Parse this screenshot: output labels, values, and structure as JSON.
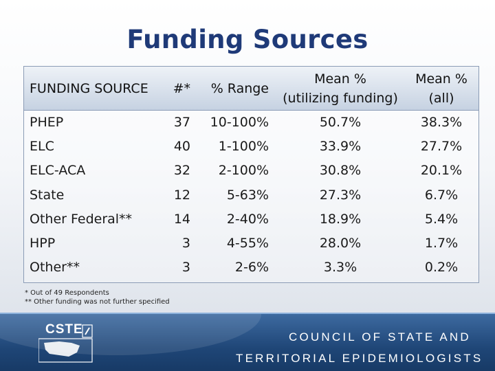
{
  "title": "Funding Sources",
  "table": {
    "headers": [
      "FUNDING SOURCE",
      "#*",
      "% Range",
      "Mean %\n(utilizing funding)",
      "Mean %\n(all)"
    ],
    "header_lines": {
      "col3_line1": "Mean %",
      "col3_line2": "(utilizing funding)",
      "col4_line1": "Mean %",
      "col4_line2": "(all)"
    },
    "rows": [
      [
        "PHEP",
        "37",
        "10-100%",
        "50.7%",
        "38.3%"
      ],
      [
        "ELC",
        "40",
        "1-100%",
        "33.9%",
        "27.7%"
      ],
      [
        "ELC-ACA",
        "32",
        "2-100%",
        "30.8%",
        "20.1%"
      ],
      [
        "State",
        "12",
        "5-63%",
        "27.3%",
        "6.7%"
      ],
      [
        "Other Federal**",
        "14",
        "2-40%",
        "18.9%",
        "5.4%"
      ],
      [
        "HPP",
        "3",
        "4-55%",
        "28.0%",
        "1.7%"
      ],
      [
        "Other**",
        "3",
        "2-6%",
        "3.3%",
        "0.2%"
      ]
    ]
  },
  "footnotes": [
    "* Out of 49 Respondents",
    "** Other funding was not further specified"
  ],
  "footer": {
    "logo_text": "CSTE",
    "org_line1": "COUNCIL OF STATE AND",
    "org_line2": "TERRITORIAL EPIDEMIOLOGISTS",
    "colors": {
      "band": "#1f4677",
      "title": "#1f3a78"
    }
  }
}
